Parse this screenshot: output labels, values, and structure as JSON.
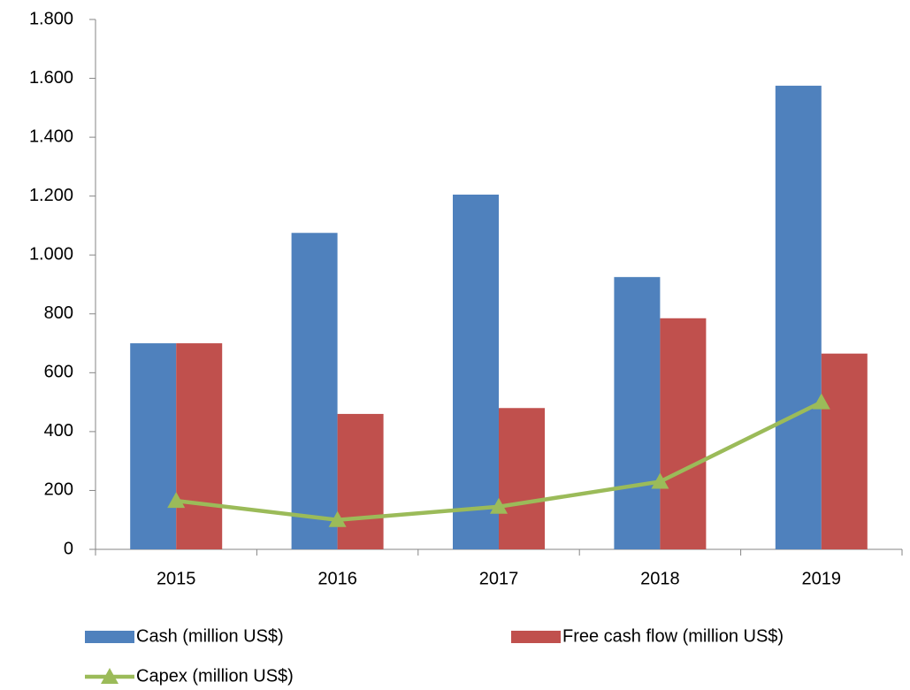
{
  "chart_data": {
    "type": "bar",
    "categories": [
      "2015",
      "2016",
      "2017",
      "2018",
      "2019"
    ],
    "series": [
      {
        "name": "Cash (million US$)",
        "color": "#4f81bd",
        "type": "bar",
        "values": [
          700,
          1075,
          1205,
          925,
          1575
        ]
      },
      {
        "name": "Free cash flow (million US$)",
        "color": "#c0504d",
        "type": "bar",
        "values": [
          700,
          460,
          480,
          785,
          665
        ]
      },
      {
        "name": "Capex (million US$)",
        "color": "#9bbb59",
        "type": "line",
        "values": [
          165,
          100,
          145,
          230,
          500
        ]
      }
    ],
    "ylim": [
      0,
      1800
    ],
    "yticks": [
      0,
      200,
      400,
      600,
      800,
      {
        "value": 1000,
        "label": "1.000"
      },
      {
        "value": 1200,
        "label": "1.200"
      },
      {
        "value": 1400,
        "label": "1.400"
      },
      {
        "value": 1600,
        "label": "1.600"
      },
      {
        "value": 1800,
        "label": "1.800"
      }
    ],
    "grid": false,
    "legend": "bottom"
  }
}
